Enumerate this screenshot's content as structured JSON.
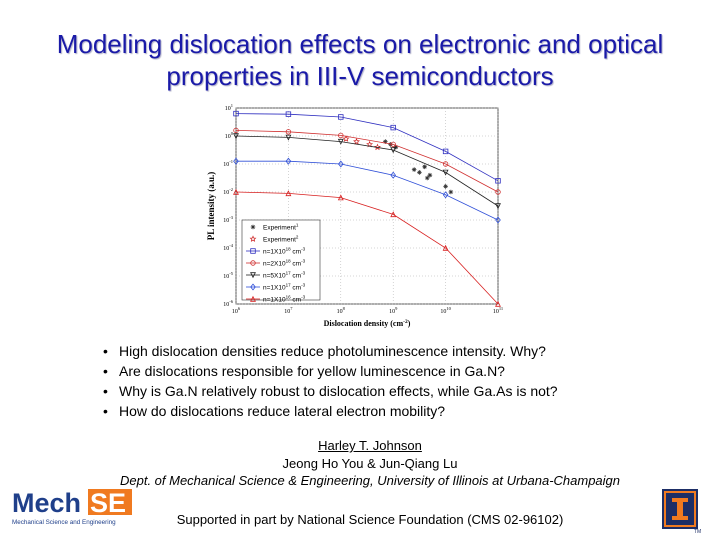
{
  "slide": {
    "title_line1": "Modeling dislocation effects on electronic and optical",
    "title_line2": "properties in III-V semiconductors",
    "bullets": [
      "High dislocation densities reduce photoluminescence intensity.  Why?",
      "Are dislocations responsible for yellow luminescence in Ga.N?",
      "Why is Ga.N relatively robust to dislocation effects, while Ga.As is not?",
      "How do dislocations reduce lateral electron mobility?"
    ],
    "author_main": "Harley T. Johnson",
    "author_sub": "Jeong Ho You & Jun-Qiang Lu",
    "department": "Dept. of Mechanical Science & Engineering, University of Illinois at Urbana-Champaign",
    "support": "Supported in part by National Science Foundation (CMS 02-96102)",
    "logo_left": {
      "main": "MechSE",
      "mech": "Mech",
      "se": "SE",
      "sub": "Mechanical Science and Engineering"
    },
    "logo_right": {
      "tm": "TM"
    }
  },
  "chart_data": {
    "type": "line",
    "xlabel": "Dislocation density (cm",
    "xlabel_sup": "-2",
    "xlabel_end": ")",
    "ylabel": "PL intensity (a.u.)",
    "x_log": true,
    "y_log": true,
    "xlim_exp": [
      6,
      11
    ],
    "ylim_exp": [
      -6,
      1
    ],
    "x_ticks": [
      {
        "base": "10",
        "exp": "6"
      },
      {
        "base": "10",
        "exp": "7"
      },
      {
        "base": "10",
        "exp": "8"
      },
      {
        "base": "10",
        "exp": "9"
      },
      {
        "base": "10",
        "exp": "10"
      },
      {
        "base": "10",
        "exp": "11"
      }
    ],
    "y_ticks": [
      {
        "base": "10",
        "exp": "1"
      },
      {
        "base": "10",
        "exp": "0"
      },
      {
        "base": "10",
        "exp": "-1"
      },
      {
        "base": "10",
        "exp": "-2"
      },
      {
        "base": "10",
        "exp": "-3"
      },
      {
        "base": "10",
        "exp": "-4"
      },
      {
        "base": "10",
        "exp": "-5"
      },
      {
        "base": "10",
        "exp": "-6"
      }
    ],
    "grid": true,
    "legend_position": "bottom-left",
    "series": [
      {
        "legend": "Experiment",
        "legend_sup": "1",
        "marker": "star",
        "color": "#333333",
        "line": false,
        "x_exp": [
          8.85,
          8.95,
          9.05,
          9.4,
          9.5,
          9.6,
          9.65,
          9.7,
          10.0,
          10.1
        ],
        "y_exp": [
          -0.2,
          -0.3,
          -0.4,
          -1.2,
          -1.3,
          -1.1,
          -1.5,
          -1.4,
          -1.8,
          -2.0
        ]
      },
      {
        "legend": "Experiment",
        "legend_sup": "2",
        "marker": "pentagram",
        "color": "#cc2222",
        "line": false,
        "x_exp": [
          8.1,
          8.3,
          8.55,
          8.7
        ],
        "y_exp": [
          -0.1,
          -0.2,
          -0.3,
          -0.4
        ]
      },
      {
        "legend": "n=1X10",
        "legend_exp": "18",
        "legend_unit": " cm",
        "legend_unit_exp": "-3",
        "marker": "square",
        "color": "#3030c0",
        "line": true,
        "x_exp": [
          6,
          7,
          8,
          9,
          10,
          11
        ],
        "y_exp": [
          0.8,
          0.78,
          0.68,
          0.3,
          -0.55,
          -1.6
        ]
      },
      {
        "legend": "n=2X10",
        "legend_exp": "18",
        "legend_unit": " cm",
        "legend_unit_exp": "-3",
        "marker": "circle",
        "color": "#d03030",
        "line": true,
        "x_exp": [
          6,
          7,
          8,
          9,
          10,
          11
        ],
        "y_exp": [
          0.2,
          0.15,
          0.02,
          -0.3,
          -1.0,
          -2.0
        ]
      },
      {
        "legend": "n=5X10",
        "legend_exp": "17",
        "legend_unit": " cm",
        "legend_unit_exp": "-3",
        "marker": "triangle-down",
        "color": "#222222",
        "line": true,
        "x_exp": [
          6,
          7,
          8,
          9,
          10,
          11
        ],
        "y_exp": [
          0.0,
          -0.05,
          -0.2,
          -0.5,
          -1.3,
          -2.5
        ]
      },
      {
        "legend": "n=1X10",
        "legend_exp": "17",
        "legend_unit": " cm",
        "legend_unit_exp": "-3",
        "marker": "diamond",
        "color": "#3050d8",
        "line": true,
        "x_exp": [
          6,
          7,
          8,
          9,
          10,
          11
        ],
        "y_exp": [
          -0.9,
          -0.9,
          -1.0,
          -1.4,
          -2.1,
          -3.0
        ]
      },
      {
        "legend": "n=1X10",
        "legend_exp": "16",
        "legend_unit": " cm",
        "legend_unit_exp": "-3",
        "marker": "triangle-up",
        "color": "#d82020",
        "line": true,
        "x_exp": [
          6,
          7,
          8,
          9,
          10,
          11
        ],
        "y_exp": [
          -2.0,
          -2.05,
          -2.2,
          -2.8,
          -4.0,
          -6.0
        ]
      }
    ]
  }
}
